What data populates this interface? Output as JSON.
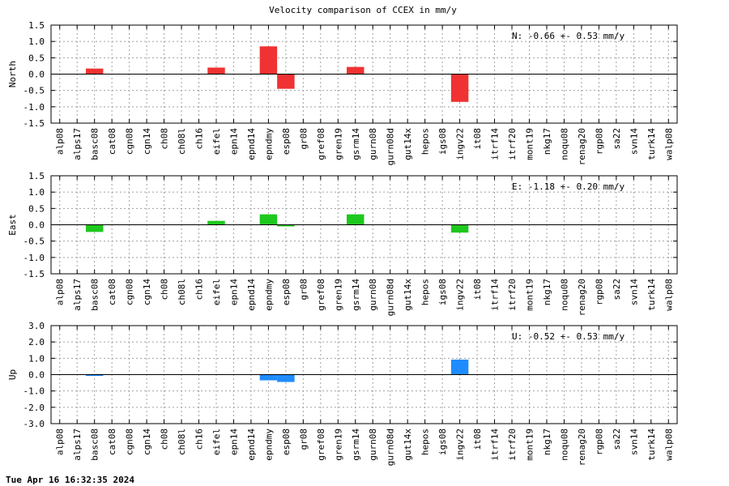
{
  "chart_data": {
    "type": "bar",
    "title": "Velocity comparison of CCEX in mm/y",
    "categories": [
      "alp08",
      "alps17",
      "basc08",
      "cat08",
      "cgn08",
      "cgn14",
      "ch08",
      "ch08l",
      "ch16",
      "eifel",
      "epn14",
      "epnd14",
      "epndmy",
      "esp08",
      "gr08",
      "gref08",
      "gren19",
      "gsrm14",
      "gurn08",
      "gurn08d",
      "gut14x",
      "hepos",
      "igs08",
      "ingv22",
      "it08",
      "itrf14",
      "itrf20",
      "mont19",
      "nkg17",
      "noqu08",
      "renag20",
      "rgp08",
      "sa22",
      "svn14",
      "turk14",
      "walp08"
    ],
    "panels": [
      {
        "name": "north",
        "ylabel": "North",
        "ylim": [
          -1.5,
          1.5
        ],
        "yticks": [
          "-1.5",
          "-1.0",
          "-0.5",
          "0.0",
          "0.5",
          "1.0",
          "1.5"
        ],
        "ytick_values": [
          -1.5,
          -1.0,
          -0.5,
          0.0,
          0.5,
          1.0,
          1.5
        ],
        "color": "#f03232",
        "annotation": "N:  -0.66 +-  0.53 mm/y",
        "values": [
          0,
          0,
          0.17,
          0,
          0,
          0,
          0,
          0,
          0,
          0.2,
          0,
          0,
          0.85,
          -0.45,
          0,
          0,
          0,
          0.22,
          0,
          0,
          0,
          0,
          0,
          -0.85,
          0,
          0,
          0,
          0,
          0,
          0,
          0,
          0,
          0,
          0,
          0,
          0
        ]
      },
      {
        "name": "east",
        "ylabel": "East",
        "ylim": [
          -1.5,
          1.5
        ],
        "yticks": [
          "-1.5",
          "-1.0",
          "-0.5",
          "0.0",
          "0.5",
          "1.0",
          "1.5"
        ],
        "ytick_values": [
          -1.5,
          -1.0,
          -0.5,
          0.0,
          0.5,
          1.0,
          1.5
        ],
        "color": "#1ec81e",
        "annotation": "E:  -1.18 +-  0.20 mm/y",
        "values": [
          0,
          0,
          -0.22,
          0,
          0,
          0,
          0,
          0,
          0,
          0.12,
          0,
          0,
          0.32,
          -0.05,
          0,
          0,
          0,
          0.32,
          0,
          0,
          0,
          0,
          0,
          -0.24,
          0,
          0,
          0,
          0,
          0,
          0,
          0,
          0,
          0,
          0,
          0,
          0
        ]
      },
      {
        "name": "up",
        "ylabel": "Up",
        "ylim": [
          -3.0,
          3.0
        ],
        "yticks": [
          "-3.0",
          "-2.0",
          "-1.0",
          "0.0",
          "1.0",
          "2.0",
          "3.0"
        ],
        "ytick_values": [
          -3.0,
          -2.0,
          -1.0,
          0.0,
          1.0,
          2.0,
          3.0
        ],
        "color": "#1e8cff",
        "annotation": "U:  -0.52 +-  0.53 mm/y",
        "values": [
          0,
          0,
          -0.08,
          0,
          0,
          0,
          0,
          0,
          0,
          0,
          0,
          0,
          -0.35,
          -0.45,
          0,
          0,
          0,
          0,
          0,
          0,
          0,
          0,
          0,
          0.92,
          0,
          0,
          0,
          0,
          0,
          0,
          0,
          0,
          0,
          0,
          0,
          0
        ]
      }
    ],
    "grid": true
  },
  "footer": {
    "timestamp": "Tue Apr 16 16:32:35 2024"
  }
}
